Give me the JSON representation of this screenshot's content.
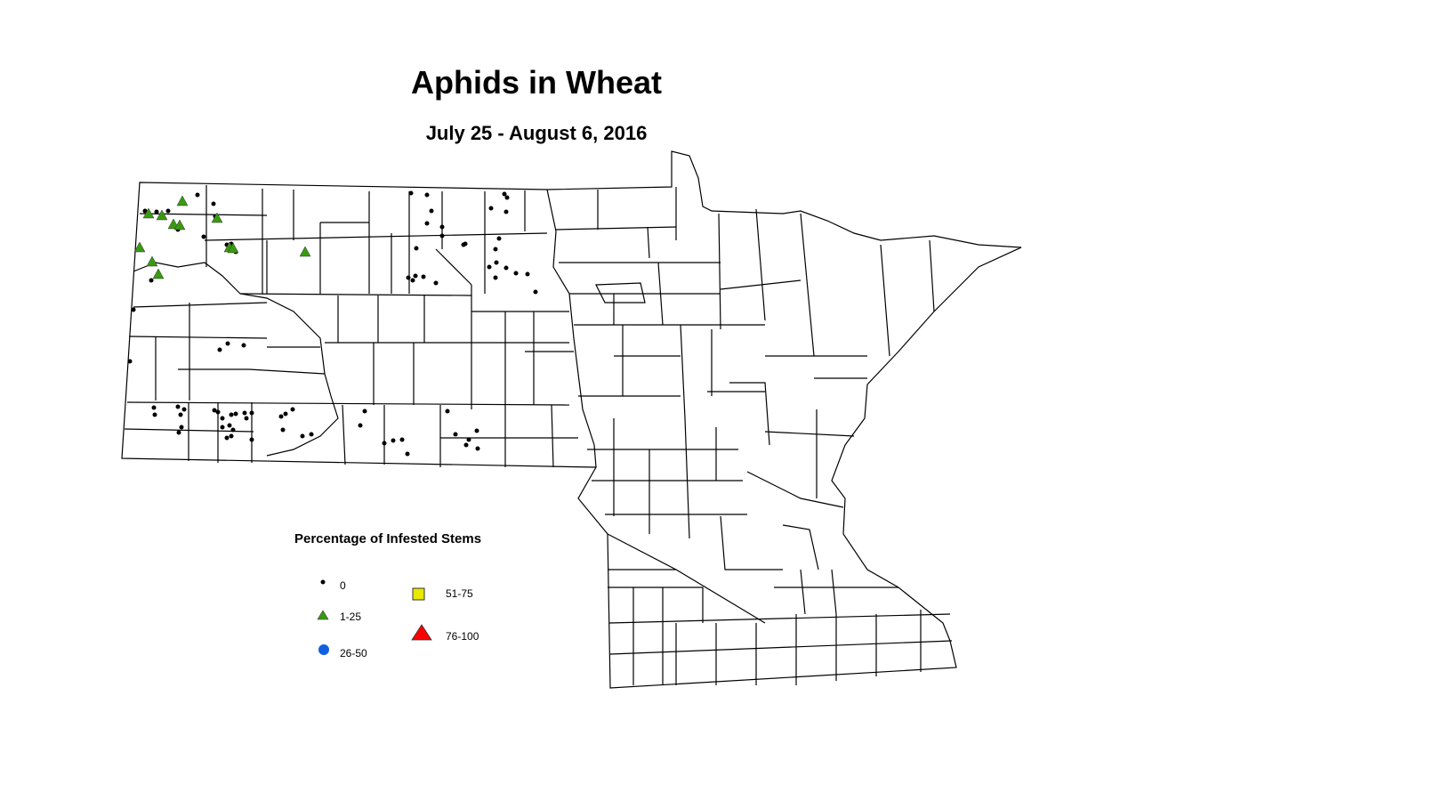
{
  "title": "Aphids in Wheat",
  "subtitle": "July 25 - August 6, 2016",
  "legend": {
    "title": "Percentage of Infested Stems",
    "items": [
      {
        "label": "0",
        "symbol": "small-dot",
        "color": "#000000"
      },
      {
        "label": "1-25",
        "symbol": "triangle",
        "color": "#3a9a10"
      },
      {
        "label": "26-50",
        "symbol": "circle",
        "color": "#1060e0"
      },
      {
        "label": "51-75",
        "symbol": "square",
        "color": "#e8e800"
      },
      {
        "label": "76-100",
        "symbol": "large-triangle",
        "color": "#ff0000"
      }
    ]
  },
  "colors": {
    "boundary": "#000000",
    "fill": "#ffffff"
  }
}
